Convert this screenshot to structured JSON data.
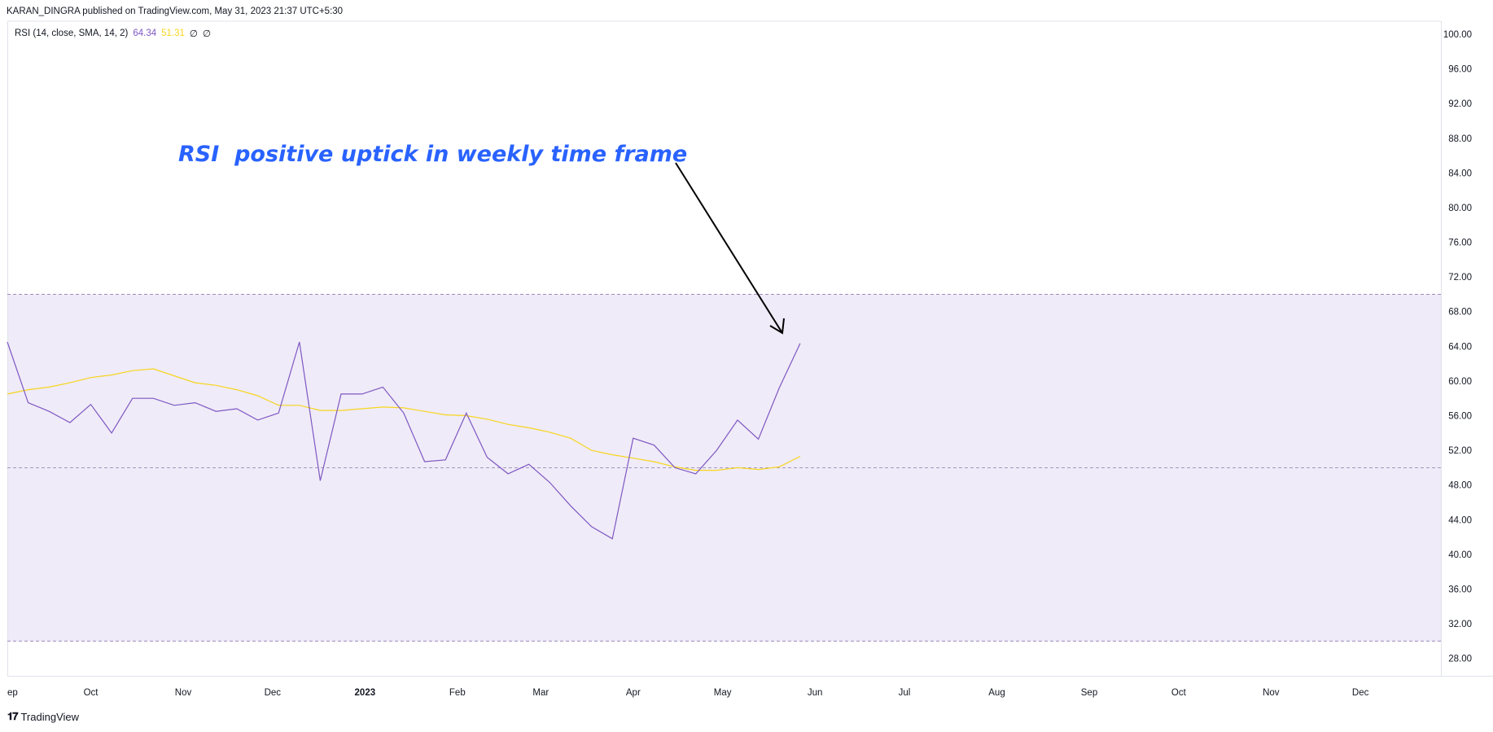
{
  "header": {
    "publisher_line": "KARAN_DINGRA published on TradingView.com, May 31, 2023 21:37 UTC+5:30"
  },
  "legend": {
    "indicator": "RSI (14, close, SMA, 14, 2)",
    "rsi_value": "64.34",
    "sma_value": "51.31",
    "extra1": "∅",
    "extra2": "∅"
  },
  "annotation": {
    "text": "RSI  positive uptick in weekly time frame"
  },
  "footer": {
    "brand": "TradingView"
  },
  "colors": {
    "rsi_line": "#7e57c2",
    "sma_line": "#f7d51d",
    "band_fill": "#efebf8",
    "band_border": "#9b8bb8",
    "annotation": "#2962ff",
    "arrow": "#000000"
  },
  "chart_data": {
    "type": "line",
    "y_axis_position": "right",
    "ylim": [
      26,
      101.5
    ],
    "y_ticks": [
      "100.00",
      "96.00",
      "92.00",
      "88.00",
      "84.00",
      "80.00",
      "76.00",
      "72.00",
      "68.00",
      "64.00",
      "60.00",
      "56.00",
      "52.00",
      "48.00",
      "44.00",
      "40.00",
      "36.00",
      "32.00",
      "28.00"
    ],
    "x_start": "2022-09-03",
    "x_end": "2023-12-28",
    "x_ticks": [
      {
        "label": "ep",
        "date": "2022-09-01",
        "bold": false
      },
      {
        "label": "Oct",
        "date": "2022-10-01",
        "bold": false
      },
      {
        "label": "Nov",
        "date": "2022-11-01",
        "bold": false
      },
      {
        "label": "Dec",
        "date": "2022-12-01",
        "bold": false
      },
      {
        "label": "2023",
        "date": "2023-01-01",
        "bold": true
      },
      {
        "label": "Feb",
        "date": "2023-02-01",
        "bold": false
      },
      {
        "label": "Mar",
        "date": "2023-03-01",
        "bold": false
      },
      {
        "label": "Apr",
        "date": "2023-04-01",
        "bold": false
      },
      {
        "label": "May",
        "date": "2023-05-01",
        "bold": false
      },
      {
        "label": "Jun",
        "date": "2023-06-01",
        "bold": false
      },
      {
        "label": "Jul",
        "date": "2023-07-01",
        "bold": false
      },
      {
        "label": "Aug",
        "date": "2023-08-01",
        "bold": false
      },
      {
        "label": "Sep",
        "date": "2023-09-01",
        "bold": false
      },
      {
        "label": "Oct",
        "date": "2023-10-01",
        "bold": false
      },
      {
        "label": "Nov",
        "date": "2023-11-01",
        "bold": false
      },
      {
        "label": "Dec",
        "date": "2023-12-01",
        "bold": false
      }
    ],
    "bands": {
      "upper": 70,
      "middle": 50,
      "lower": 30
    },
    "x": [
      "2022-09-03",
      "2022-09-10",
      "2022-09-17",
      "2022-09-24",
      "2022-10-01",
      "2022-10-08",
      "2022-10-15",
      "2022-10-22",
      "2022-10-29",
      "2022-11-05",
      "2022-11-12",
      "2022-11-19",
      "2022-11-26",
      "2022-12-03",
      "2022-12-10",
      "2022-12-17",
      "2022-12-24",
      "2022-12-31",
      "2023-01-07",
      "2023-01-14",
      "2023-01-21",
      "2023-01-28",
      "2023-02-04",
      "2023-02-11",
      "2023-02-18",
      "2023-02-25",
      "2023-03-04",
      "2023-03-11",
      "2023-03-18",
      "2023-03-25",
      "2023-04-01",
      "2023-04-08",
      "2023-04-15",
      "2023-04-22",
      "2023-04-29",
      "2023-05-06",
      "2023-05-13",
      "2023-05-20",
      "2023-05-27"
    ],
    "series": [
      {
        "values": [
          64.5,
          57.5,
          56.5,
          55.2,
          57.3,
          54.0,
          58.0,
          58.0,
          57.2,
          57.5,
          56.5,
          56.8,
          55.5,
          56.3,
          64.5,
          48.5,
          58.5,
          58.5,
          59.3,
          56.3,
          50.7,
          50.9,
          56.3,
          51.2,
          49.3,
          50.4,
          48.3,
          45.6,
          43.2,
          41.8,
          53.4,
          52.6,
          50.0,
          49.3,
          52.0,
          55.5,
          53.3,
          59.2,
          64.34
        ]
      },
      {
        "values": [
          58.5,
          59.0,
          59.3,
          59.8,
          60.4,
          60.7,
          61.2,
          61.4,
          60.6,
          59.8,
          59.5,
          59.0,
          58.3,
          57.2,
          57.2,
          56.6,
          56.6,
          56.8,
          57.0,
          56.9,
          56.5,
          56.1,
          56.0,
          55.6,
          55.0,
          54.6,
          54.1,
          53.4,
          52.0,
          51.5,
          51.1,
          50.7,
          50.1,
          49.7,
          49.7,
          50.0,
          49.8,
          50.1,
          51.31
        ]
      }
    ]
  }
}
